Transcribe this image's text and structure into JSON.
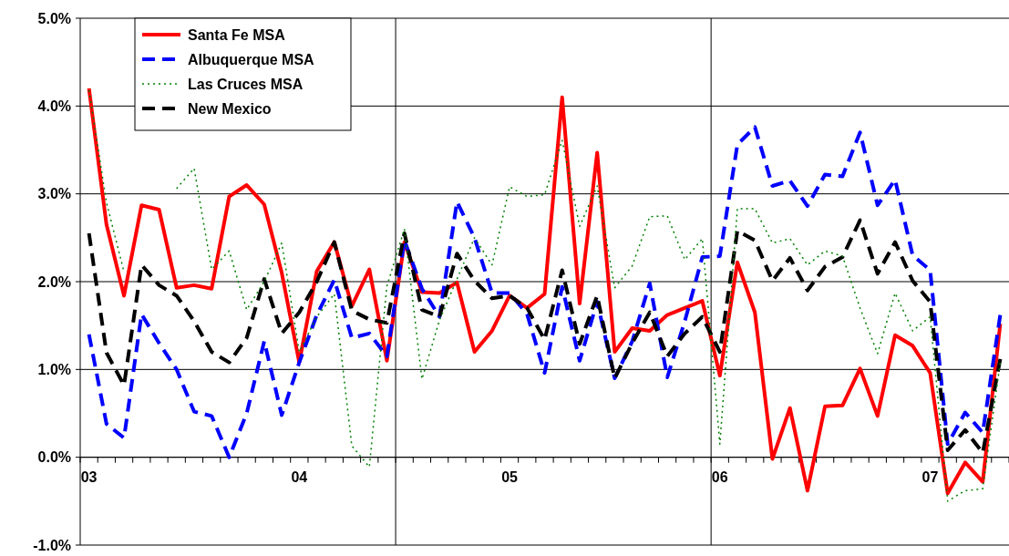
{
  "chart_data": {
    "type": "line",
    "categories": [
      "03",
      null,
      null,
      null,
      null,
      null,
      null,
      null,
      null,
      null,
      null,
      null,
      "04",
      null,
      null,
      null,
      null,
      null,
      null,
      null,
      null,
      null,
      null,
      null,
      "05",
      null,
      null,
      null,
      null,
      null,
      null,
      null,
      null,
      null,
      null,
      null,
      "06",
      null,
      null,
      null,
      null,
      null,
      null,
      null,
      null,
      null,
      null,
      null,
      "07",
      null,
      null,
      null,
      null
    ],
    "series": [
      {
        "name": "Santa Fe MSA",
        "color": "#ff0000",
        "line_style": "solid",
        "values": [
          4.2,
          2.65,
          1.84,
          2.87,
          2.82,
          1.93,
          1.96,
          1.92,
          2.97,
          3.1,
          2.88,
          2.1,
          1.08,
          2.12,
          2.45,
          1.72,
          2.14,
          1.1,
          2.45,
          1.88,
          1.87,
          1.99,
          1.2,
          1.44,
          1.84,
          1.7,
          1.86,
          4.1,
          1.75,
          3.47,
          1.2,
          1.47,
          1.44,
          1.62,
          1.7,
          1.78,
          0.93,
          2.22,
          1.65,
          -0.02,
          0.56,
          -0.38,
          0.58,
          0.59,
          1.01,
          0.47,
          1.39,
          1.27,
          0.96,
          -0.41,
          -0.06,
          -0.28,
          1.52
        ]
      },
      {
        "name": "Albuquerque MSA",
        "color": "#0000ff",
        "line_style": "dashed",
        "values": [
          1.4,
          0.38,
          0.22,
          1.63,
          1.3,
          1.0,
          0.52,
          0.47,
          0.0,
          0.5,
          1.32,
          0.48,
          1.08,
          1.62,
          2.02,
          1.36,
          1.41,
          1.15,
          2.47,
          1.92,
          1.6,
          2.91,
          2.5,
          1.87,
          1.87,
          1.63,
          0.96,
          1.94,
          1.1,
          1.77,
          0.9,
          1.32,
          1.98,
          0.91,
          1.55,
          2.28,
          2.29,
          3.56,
          3.76,
          3.09,
          3.15,
          2.86,
          3.22,
          3.2,
          3.7,
          2.87,
          3.16,
          2.3,
          2.13,
          0.15,
          0.51,
          0.28,
          1.62
        ]
      },
      {
        "name": "Las Cruces MSA",
        "color": "#008000",
        "line_style": "dotted",
        "values": [
          4.18,
          2.9,
          2.11,
          null,
          null,
          3.06,
          3.29,
          2.14,
          2.35,
          1.68,
          2.0,
          2.44,
          1.2,
          1.6,
          1.86,
          0.13,
          -0.11,
          1.95,
          2.6,
          0.89,
          1.56,
          2.03,
          2.5,
          2.19,
          3.08,
          2.97,
          2.99,
          3.61,
          2.63,
          3.09,
          1.93,
          2.18,
          2.74,
          2.75,
          2.25,
          2.49,
          0.15,
          2.83,
          2.83,
          2.44,
          2.49,
          2.19,
          2.35,
          2.29,
          1.7,
          1.18,
          1.87,
          1.44,
          1.6,
          -0.5,
          -0.38,
          -0.36,
          1.08
        ]
      },
      {
        "name": "New Mexico",
        "color": "#000000",
        "line_style": "dashed",
        "values": [
          2.55,
          1.19,
          0.82,
          2.19,
          1.96,
          1.84,
          1.55,
          1.2,
          1.08,
          1.36,
          2.03,
          1.41,
          1.65,
          2.0,
          2.45,
          1.67,
          1.57,
          1.53,
          2.55,
          1.68,
          1.6,
          2.32,
          2.01,
          1.81,
          1.84,
          1.7,
          1.34,
          2.13,
          1.29,
          1.84,
          0.9,
          1.3,
          1.65,
          1.15,
          1.41,
          1.6,
          1.2,
          2.58,
          2.47,
          2.01,
          2.27,
          1.9,
          2.17,
          2.28,
          2.7,
          2.09,
          2.45,
          2.01,
          1.77,
          0.08,
          0.31,
          0.05,
          1.12
        ]
      }
    ],
    "ylim": [
      -1,
      5
    ],
    "yticks": [
      {
        "value": -1,
        "label": "-1.0%"
      },
      {
        "value": 0,
        "label": "0.0%"
      },
      {
        "value": 1,
        "label": "1.0%"
      },
      {
        "value": 2,
        "label": "2.0%"
      },
      {
        "value": 3,
        "label": "3.0%"
      },
      {
        "value": 4,
        "label": "4.0%"
      },
      {
        "value": 5,
        "label": "5.0%"
      }
    ],
    "grid": "y",
    "legend": "top left",
    "marker": "none"
  }
}
